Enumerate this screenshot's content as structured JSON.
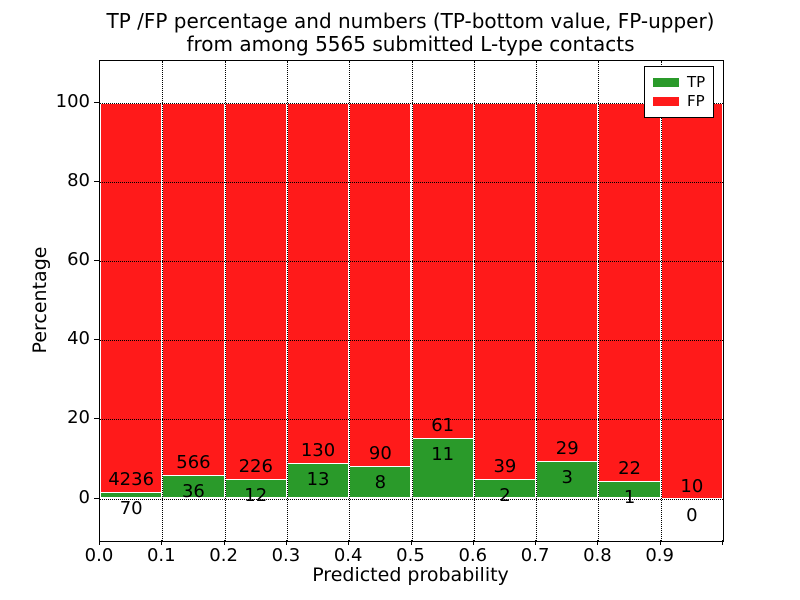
{
  "title": {
    "line1": "TP /FP percentage and numbers (TP-bottom value, FP-upper)",
    "line2": "from among 5565 submitted L-type contacts"
  },
  "chart_data": {
    "type": "bar",
    "stacked": true,
    "title": "TP /FP percentage and numbers (TP-bottom value, FP-upper) from among 5565 submitted L-type contacts",
    "xlabel": "Predicted probability",
    "ylabel": "Percentage",
    "total_contacts": 5565,
    "x_bins": {
      "start": 0.0,
      "end": 1.0,
      "width": 0.1
    },
    "x_tick_labels": [
      "0.0",
      "0.1",
      "0.2",
      "0.3",
      "0.4",
      "0.5",
      "0.6",
      "0.7",
      "0.8",
      "0.9"
    ],
    "y_ticks": [
      0,
      20,
      40,
      60,
      80,
      100
    ],
    "ylim": [
      -11,
      110.5
    ],
    "grid": true,
    "plot_bg": "#ffffff",
    "series": [
      {
        "name": "TP",
        "color": "#2a9a2a",
        "counts": [
          70,
          36,
          12,
          13,
          8,
          11,
          2,
          3,
          1,
          0
        ],
        "percent": [
          1.63,
          5.98,
          5.04,
          9.09,
          8.16,
          15.28,
          4.88,
          9.38,
          4.35,
          0.0
        ]
      },
      {
        "name": "FP",
        "color": "#ff1a1a",
        "counts": [
          4236,
          566,
          226,
          130,
          90,
          61,
          39,
          29,
          22,
          10
        ],
        "percent": [
          98.37,
          94.02,
          94.96,
          90.91,
          91.84,
          84.72,
          95.12,
          90.62,
          95.65,
          100.0
        ]
      }
    ],
    "legend": {
      "position": "upper right",
      "entries": [
        {
          "label": "TP",
          "color": "#2a9a2a"
        },
        {
          "label": "FP",
          "color": "#ff1a1a"
        }
      ]
    }
  }
}
